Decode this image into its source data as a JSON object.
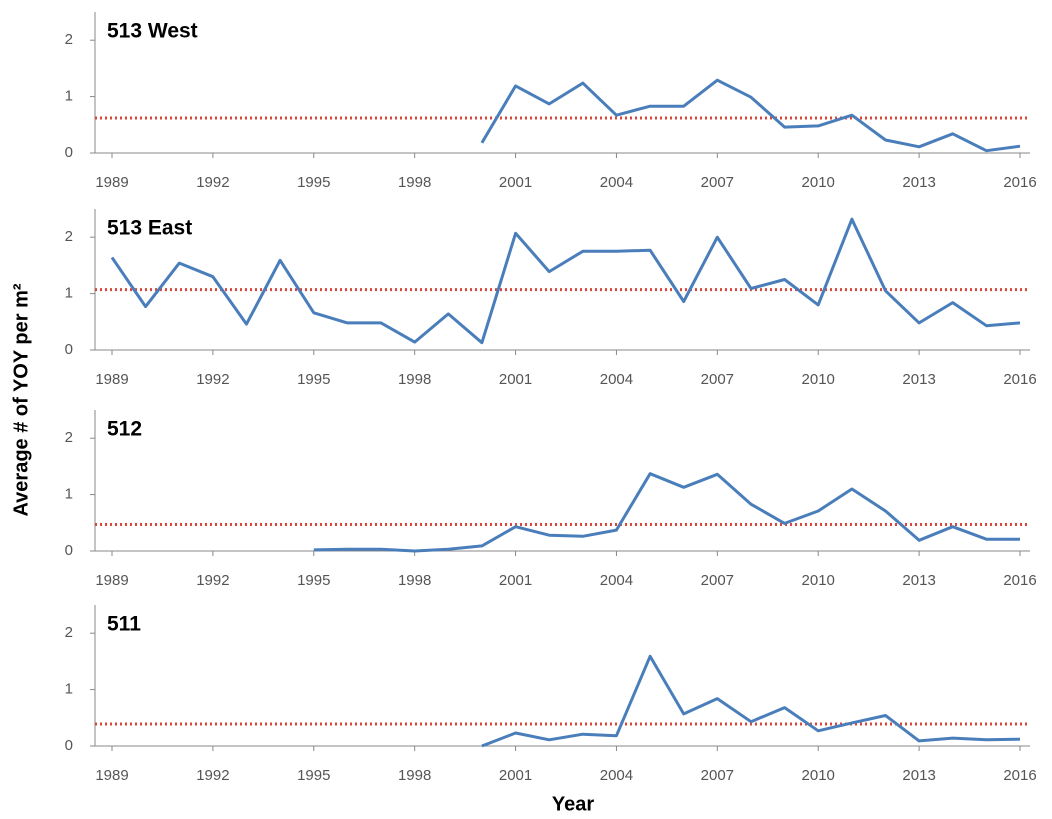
{
  "ylabel": "Average # of YOY per m²",
  "xlabel": "Year",
  "chart_data": [
    {
      "type": "line",
      "title": "513 West",
      "x": [
        1989,
        1990,
        1991,
        1992,
        1993,
        1994,
        1995,
        1996,
        1997,
        1998,
        1999,
        2000,
        2001,
        2002,
        2003,
        2004,
        2005,
        2006,
        2007,
        2008,
        2009,
        2010,
        2011,
        2012,
        2013,
        2014,
        2015,
        2016
      ],
      "values": [
        null,
        null,
        null,
        null,
        null,
        null,
        null,
        null,
        null,
        null,
        null,
        0.18,
        1.19,
        0.87,
        1.24,
        0.67,
        0.83,
        0.83,
        1.29,
        0.99,
        0.46,
        0.48,
        0.67,
        0.23,
        0.11,
        0.34,
        0.04,
        0.12
      ],
      "color": "#4a7ebb",
      "reference_line": {
        "value": 0.62,
        "color": "#d9463b"
      },
      "xlim": [
        1989,
        2016
      ],
      "xticks": [
        1989,
        1992,
        1995,
        1998,
        2001,
        2004,
        2007,
        2010,
        2013,
        2016
      ],
      "ylim": [
        0,
        2.5
      ],
      "yticks": [
        0,
        1,
        2
      ]
    },
    {
      "type": "line",
      "title": "513 East",
      "x": [
        1989,
        1990,
        1991,
        1992,
        1993,
        1994,
        1995,
        1996,
        1997,
        1998,
        1999,
        2000,
        2001,
        2002,
        2003,
        2004,
        2005,
        2006,
        2007,
        2008,
        2009,
        2010,
        2011,
        2012,
        2013,
        2014,
        2015,
        2016
      ],
      "values": [
        1.64,
        0.77,
        1.54,
        1.3,
        0.46,
        1.59,
        0.66,
        0.48,
        0.48,
        0.14,
        0.64,
        0.13,
        2.07,
        1.39,
        1.75,
        1.75,
        1.77,
        0.86,
        2.0,
        1.09,
        1.25,
        0.8,
        2.32,
        1.05,
        0.48,
        0.84,
        0.43,
        0.48
      ],
      "color": "#4a7ebb",
      "reference_line": {
        "value": 1.07,
        "color": "#d9463b"
      },
      "xlim": [
        1989,
        2016
      ],
      "xticks": [
        1989,
        1992,
        1995,
        1998,
        2001,
        2004,
        2007,
        2010,
        2013,
        2016
      ],
      "ylim": [
        0,
        2.5
      ],
      "yticks": [
        0,
        1,
        2
      ]
    },
    {
      "type": "line",
      "title": "512",
      "x": [
        1989,
        1990,
        1991,
        1992,
        1993,
        1994,
        1995,
        1996,
        1997,
        1998,
        1999,
        2000,
        2001,
        2002,
        2003,
        2004,
        2005,
        2006,
        2007,
        2008,
        2009,
        2010,
        2011,
        2012,
        2013,
        2014,
        2015,
        2016
      ],
      "values": [
        null,
        null,
        null,
        null,
        null,
        null,
        0.02,
        0.03,
        0.03,
        0,
        0.03,
        0.09,
        0.43,
        0.28,
        0.26,
        0.37,
        1.37,
        1.13,
        1.36,
        0.83,
        0.49,
        0.71,
        1.1,
        0.71,
        0.19,
        0.43,
        0.21,
        0.21
      ],
      "color": "#4a7ebb",
      "reference_line": {
        "value": 0.47,
        "color": "#d9463b"
      },
      "xlim": [
        1989,
        2016
      ],
      "xticks": [
        1989,
        1992,
        1995,
        1998,
        2001,
        2004,
        2007,
        2010,
        2013,
        2016
      ],
      "ylim": [
        0,
        2.5
      ],
      "yticks": [
        0,
        1,
        2
      ]
    },
    {
      "type": "line",
      "title": "511",
      "x": [
        1989,
        1990,
        1991,
        1992,
        1993,
        1994,
        1995,
        1996,
        1997,
        1998,
        1999,
        2000,
        2001,
        2002,
        2003,
        2004,
        2005,
        2006,
        2007,
        2008,
        2009,
        2010,
        2011,
        2012,
        2013,
        2014,
        2015,
        2016
      ],
      "values": [
        null,
        null,
        null,
        null,
        null,
        null,
        null,
        null,
        null,
        null,
        null,
        0,
        0.23,
        0.11,
        0.21,
        0.18,
        1.59,
        0.57,
        0.84,
        0.43,
        0.68,
        0.27,
        0.41,
        0.54,
        0.09,
        0.14,
        0.11,
        0.12
      ],
      "color": "#4a7ebb",
      "reference_line": {
        "value": 0.39,
        "color": "#d9463b"
      },
      "xlim": [
        1989,
        2016
      ],
      "xticks": [
        1989,
        1992,
        1995,
        1998,
        2001,
        2004,
        2007,
        2010,
        2013,
        2016
      ],
      "ylim": [
        0,
        2.5
      ],
      "yticks": [
        0,
        1,
        2
      ]
    }
  ]
}
